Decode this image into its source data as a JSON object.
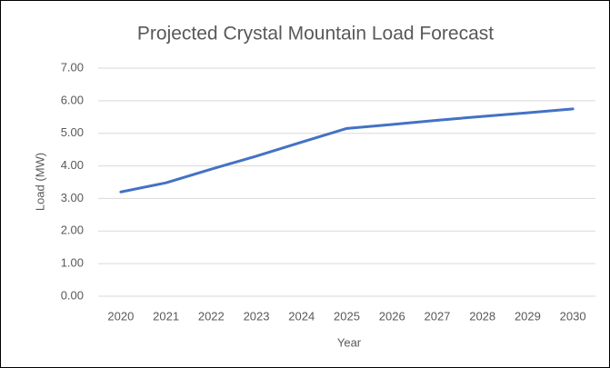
{
  "chart_data": {
    "type": "line",
    "title": "Projected Crystal Mountain Load Forecast",
    "xlabel": "Year",
    "ylabel": "Load (MW)",
    "categories": [
      "2020",
      "2021",
      "2022",
      "2023",
      "2024",
      "2025",
      "2026",
      "2027",
      "2028",
      "2029",
      "2030"
    ],
    "series": [
      {
        "name": "Load",
        "color": "#4472c4",
        "values": [
          3.2,
          3.48,
          3.9,
          4.3,
          4.73,
          5.15,
          5.27,
          5.4,
          5.52,
          5.63,
          5.75
        ]
      }
    ],
    "ylim": [
      0,
      7
    ],
    "yticks": [
      {
        "value": 0,
        "label": "0.00"
      },
      {
        "value": 1,
        "label": "1.00"
      },
      {
        "value": 2,
        "label": "2.00"
      },
      {
        "value": 3,
        "label": "3.00"
      },
      {
        "value": 4,
        "label": "4.00"
      },
      {
        "value": 5,
        "label": "5.00"
      },
      {
        "value": 6,
        "label": "6.00"
      },
      {
        "value": 7,
        "label": "7.00"
      }
    ],
    "grid": true
  }
}
